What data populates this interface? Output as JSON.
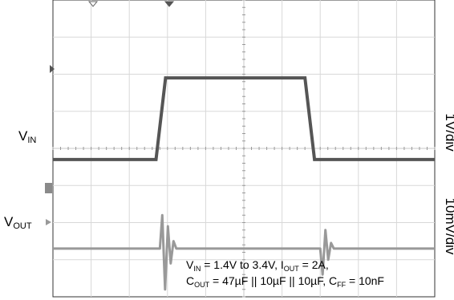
{
  "chart_data": {
    "type": "line",
    "divisions": {
      "x": 10,
      "y": 8
    },
    "series": [
      {
        "label_main": "V",
        "label_sub": "IN",
        "scale": "1V/div",
        "color": "#555555",
        "points": [
          [
            0,
            -0.3
          ],
          [
            2.7,
            -0.3
          ],
          [
            2.95,
            1.9
          ],
          [
            6.6,
            1.9
          ],
          [
            6.85,
            -0.3
          ],
          [
            10,
            -0.3
          ]
        ]
      },
      {
        "label_main": "V",
        "label_sub": "OUT",
        "scale": "10mV/div",
        "color": "#999999",
        "baseline_div": -2.7,
        "events": [
          {
            "t": 2.8,
            "amplitudes": [
              0.9,
              -1.1,
              0.6,
              -0.4,
              0.2
            ]
          },
          {
            "t": 7.0,
            "amplitudes": [
              -0.7,
              0.5,
              -0.3,
              0.15
            ]
          }
        ]
      }
    ],
    "annotation": {
      "line1": [
        {
          "t": "V",
          "s": false
        },
        {
          "t": "IN",
          "s": true
        },
        {
          "t": " = 1.4V to 3.4V, I",
          "s": false
        },
        {
          "t": "OUT",
          "s": true
        },
        {
          "t": " = 2A,",
          "s": false
        }
      ],
      "line2": [
        {
          "t": "C",
          "s": false
        },
        {
          "t": "OUT",
          "s": true
        },
        {
          "t": " = 47µF || 10µF || 10µF, C",
          "s": false
        },
        {
          "t": "FF",
          "s": true
        },
        {
          "t": " = 10nF",
          "s": false
        }
      ]
    }
  }
}
